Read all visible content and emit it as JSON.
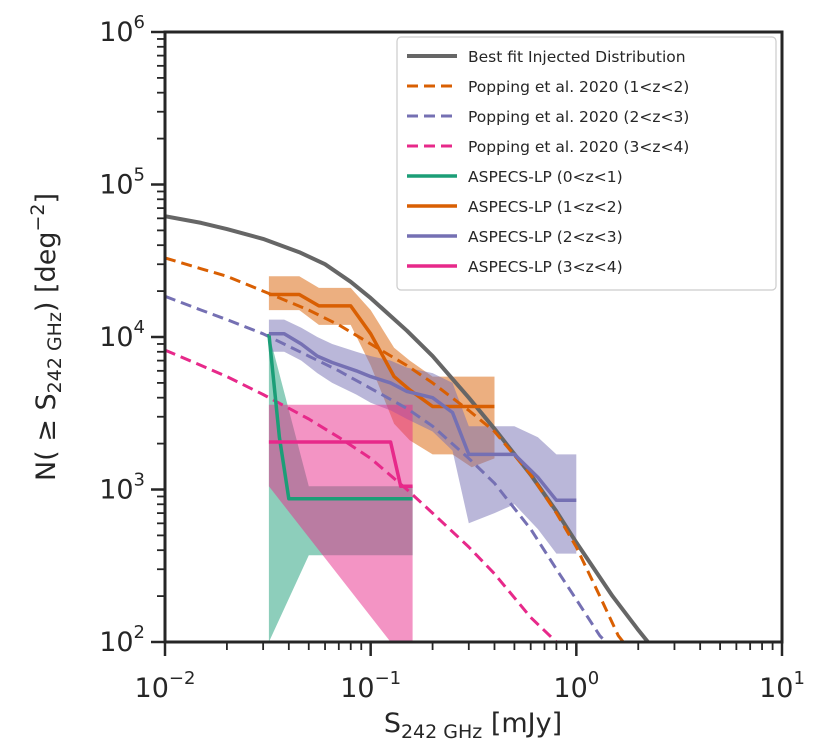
{
  "chart_data": {
    "type": "line",
    "xscale": "log",
    "yscale": "log",
    "xlim": [
      0.01,
      10
    ],
    "ylim": [
      100,
      1000000
    ],
    "xlabel": {
      "main": "S",
      "sub": "242 GHz",
      "unit": " [mJy]"
    },
    "ylabel": {
      "pre": "N( ≥ S",
      "sub": "242 GHz",
      "post": ") [deg",
      "sup": "−2",
      "end": "]"
    },
    "x_ticks": [
      {
        "value": 0.01,
        "base": "10",
        "exp": "−2"
      },
      {
        "value": 0.1,
        "base": "10",
        "exp": "−1"
      },
      {
        "value": 1,
        "base": "10",
        "exp": "0"
      },
      {
        "value": 10,
        "base": "10",
        "exp": "1"
      }
    ],
    "y_ticks": [
      {
        "value": 100,
        "base": "10",
        "exp": "2"
      },
      {
        "value": 1000,
        "base": "10",
        "exp": "3"
      },
      {
        "value": 10000,
        "base": "10",
        "exp": "4"
      },
      {
        "value": 100000,
        "base": "10",
        "exp": "5"
      },
      {
        "value": 1000000,
        "base": "10",
        "exp": "6"
      }
    ],
    "legend_position": "top-right",
    "series": [
      {
        "name": "Best fit Injected Distribution",
        "style": "solid",
        "color": "#666666",
        "width": 4,
        "x": [
          0.01,
          0.015,
          0.02,
          0.03,
          0.045,
          0.06,
          0.08,
          0.1,
          0.15,
          0.2,
          0.3,
          0.4,
          0.6,
          0.8,
          1.0,
          1.5,
          2.0,
          2.3
        ],
        "y": [
          62000,
          56000,
          51000,
          44000,
          36000,
          30000,
          23000,
          18000,
          11000,
          7500,
          4000,
          2500,
          1250,
          720,
          450,
          200,
          120,
          95
        ]
      },
      {
        "name": "Popping et al. 2020 (1<z<2)",
        "style": "dashed",
        "color": "#d95f02",
        "width": 3,
        "x": [
          0.01,
          0.015,
          0.02,
          0.03,
          0.05,
          0.07,
          0.1,
          0.15,
          0.2,
          0.3,
          0.4,
          0.6,
          0.8,
          1.0,
          1.3,
          1.6,
          1.8
        ],
        "y": [
          33000,
          28000,
          25000,
          20000,
          15000,
          12000,
          9000,
          6500,
          5000,
          3300,
          2400,
          1250,
          700,
          420,
          200,
          110,
          90
        ]
      },
      {
        "name": "Popping et al. 2020 (2<z<3)",
        "style": "dashed",
        "color": "#7570b3",
        "width": 3,
        "x": [
          0.01,
          0.015,
          0.02,
          0.03,
          0.05,
          0.07,
          0.1,
          0.15,
          0.2,
          0.3,
          0.4,
          0.6,
          0.8,
          1.0,
          1.3,
          1.5
        ],
        "y": [
          18500,
          15000,
          13000,
          10500,
          7500,
          6000,
          4600,
          3400,
          2600,
          1600,
          1100,
          550,
          300,
          190,
          110,
          90
        ]
      },
      {
        "name": "Popping et al. 2020 (3<z<4)",
        "style": "dashed",
        "color": "#e7298a",
        "width": 3,
        "x": [
          0.01,
          0.015,
          0.02,
          0.03,
          0.05,
          0.07,
          0.1,
          0.15,
          0.2,
          0.3,
          0.4,
          0.6,
          0.8,
          0.9
        ],
        "y": [
          8200,
          6500,
          5500,
          4200,
          2900,
          2200,
          1600,
          1000,
          700,
          420,
          280,
          145,
          100,
          90
        ]
      },
      {
        "name": "ASPECS-LP (0<z<1)",
        "style": "solid",
        "color": "#1b9e77",
        "width": 3.5,
        "x": [
          0.032,
          0.036,
          0.04,
          0.16
        ],
        "y": [
          10500,
          2200,
          870,
          870
        ],
        "band": {
          "x": [
            0.032,
            0.05,
            0.16
          ],
          "lower": [
            100,
            370,
            370
          ],
          "upper": [
            10500,
            1050,
            1050
          ]
        }
      },
      {
        "name": "ASPECS-LP (1<z<2)",
        "style": "solid",
        "color": "#d95f02",
        "width": 3.5,
        "x": [
          0.032,
          0.045,
          0.056,
          0.08,
          0.1,
          0.13,
          0.155,
          0.2,
          0.25,
          0.31,
          0.4
        ],
        "y": [
          19000,
          19000,
          16000,
          16000,
          10500,
          5500,
          4500,
          3500,
          3500,
          3500,
          3500
        ],
        "band": {
          "x": [
            0.032,
            0.045,
            0.056,
            0.08,
            0.1,
            0.13,
            0.155,
            0.2,
            0.25,
            0.31,
            0.4
          ],
          "lower": [
            15000,
            15000,
            12000,
            12000,
            6500,
            2700,
            2100,
            1700,
            1700,
            1400,
            1600
          ],
          "upper": [
            25000,
            25000,
            21000,
            21000,
            15000,
            8500,
            7000,
            5500,
            5500,
            5500,
            5500
          ]
        }
      },
      {
        "name": "ASPECS-LP (2<z<3)",
        "style": "solid",
        "color": "#7570b3",
        "width": 3.5,
        "x": [
          0.032,
          0.038,
          0.046,
          0.055,
          0.065,
          0.085,
          0.1,
          0.125,
          0.15,
          0.2,
          0.25,
          0.3,
          0.4,
          0.5,
          0.65,
          0.8,
          1.0
        ],
        "y": [
          10500,
          10500,
          9000,
          7500,
          6800,
          6000,
          5500,
          5000,
          4400,
          4000,
          3200,
          1700,
          1700,
          1700,
          1200,
          850,
          850
        ],
        "band": {
          "x": [
            0.032,
            0.038,
            0.046,
            0.055,
            0.065,
            0.085,
            0.1,
            0.125,
            0.15,
            0.2,
            0.25,
            0.3,
            0.4,
            0.5,
            0.65,
            0.8,
            1.0
          ],
          "lower": [
            8000,
            8000,
            7000,
            5800,
            5000,
            4200,
            3700,
            3300,
            2900,
            2400,
            1800,
            600,
            700,
            800,
            550,
            380,
            380
          ],
          "upper": [
            13000,
            13000,
            11500,
            10000,
            9000,
            8000,
            7500,
            7000,
            6300,
            5800,
            5000,
            2600,
            2600,
            2600,
            2200,
            1700,
            1700
          ]
        }
      },
      {
        "name": "ASPECS-LP (3<z<4)",
        "style": "solid",
        "color": "#e7298a",
        "width": 3.5,
        "x": [
          0.032,
          0.125,
          0.14,
          0.16
        ],
        "y": [
          2050,
          2050,
          1050,
          1050
        ],
        "band": {
          "x": [
            0.032,
            0.125,
            0.16
          ],
          "lower": [
            1050,
            100,
            100
          ],
          "upper": [
            3600,
            3600,
            3600
          ]
        }
      }
    ]
  }
}
